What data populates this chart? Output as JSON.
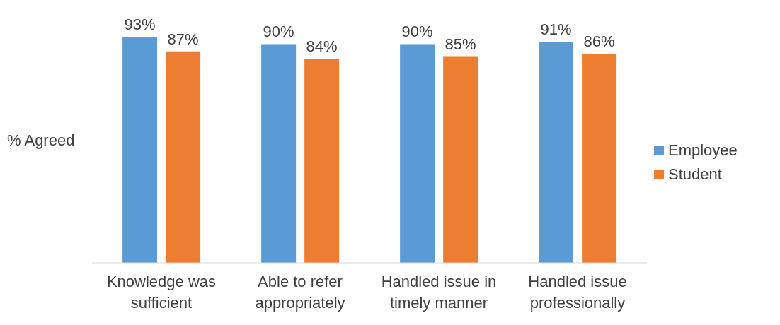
{
  "chart_data": {
    "type": "bar",
    "ylabel": "% Agreed",
    "categories": [
      "Knowledge was sufficient",
      "Able to refer appropriately",
      "Handled issue in timely manner",
      "Handled issue professionally"
    ],
    "series": [
      {
        "name": "Employee",
        "color": "#5b9bd5",
        "values": [
          93,
          90,
          90,
          91
        ],
        "value_labels": [
          "93%",
          "90%",
          "90%",
          "91%"
        ]
      },
      {
        "name": "Student",
        "color": "#ed7d31",
        "values": [
          87,
          84,
          85,
          86
        ],
        "value_labels": [
          "87%",
          "84%",
          "85%",
          "86%"
        ]
      }
    ],
    "legend": "right"
  }
}
